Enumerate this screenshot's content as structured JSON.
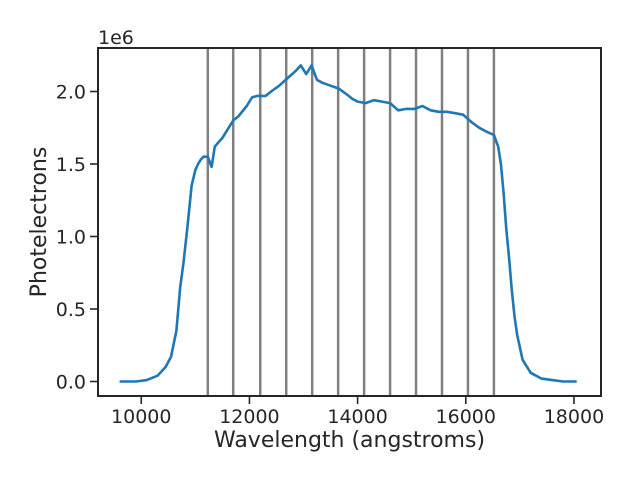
{
  "chart_data": {
    "type": "line",
    "title": "",
    "xlabel": "Wavelength (angstroms)",
    "ylabel": "Photelectrons",
    "y_offset_text": "1e6",
    "xlim": [
      9200,
      18500
    ],
    "ylim": [
      -0.1,
      2.3
    ],
    "x_ticks": [
      10000,
      12000,
      14000,
      16000,
      18000
    ],
    "x_tick_labels": [
      "10000",
      "12000",
      "14000",
      "16000",
      "18000"
    ],
    "y_ticks": [
      0.0,
      0.5,
      1.0,
      1.5,
      2.0
    ],
    "y_tick_labels": [
      "0.0",
      "0.5",
      "1.0",
      "1.5",
      "2.0"
    ],
    "grid": false,
    "line_color": "#1f77b4",
    "vline_color": "#808080",
    "vlines": [
      11230,
      11700,
      12200,
      12680,
      13160,
      13640,
      14120,
      14600,
      15080,
      15560,
      16040,
      16520
    ],
    "series": [
      {
        "x": [
          9600,
          9900,
          10100,
          10300,
          10450,
          10550,
          10650,
          10720,
          10780,
          10850,
          10930,
          11000,
          11050,
          11100,
          11150,
          11230,
          11300,
          11360,
          11430,
          11500,
          11600,
          11700,
          11800,
          11950,
          12050,
          12150,
          12300,
          12400,
          12550,
          12700,
          12850,
          12950,
          13050,
          13150,
          13250,
          13350,
          13500,
          13650,
          13800,
          13900,
          14000,
          14150,
          14300,
          14450,
          14600,
          14750,
          14900,
          15050,
          15200,
          15350,
          15500,
          15650,
          15800,
          15950,
          16100,
          16250,
          16400,
          16520,
          16600,
          16650,
          16700,
          16750,
          16800,
          16850,
          16900,
          16950,
          17050,
          17200,
          17400,
          17600,
          17800,
          18050
        ],
        "y": [
          0.0,
          0.0,
          0.01,
          0.04,
          0.1,
          0.17,
          0.35,
          0.65,
          0.82,
          1.05,
          1.35,
          1.46,
          1.5,
          1.53,
          1.55,
          1.55,
          1.48,
          1.62,
          1.65,
          1.68,
          1.74,
          1.8,
          1.83,
          1.9,
          1.96,
          1.97,
          1.97,
          2.0,
          2.04,
          2.09,
          2.14,
          2.18,
          2.12,
          2.18,
          2.08,
          2.06,
          2.04,
          2.02,
          1.98,
          1.95,
          1.93,
          1.92,
          1.94,
          1.93,
          1.92,
          1.87,
          1.88,
          1.88,
          1.9,
          1.87,
          1.86,
          1.86,
          1.85,
          1.84,
          1.79,
          1.75,
          1.72,
          1.7,
          1.62,
          1.5,
          1.3,
          1.05,
          0.85,
          0.63,
          0.45,
          0.32,
          0.15,
          0.06,
          0.02,
          0.01,
          0.0,
          0.0
        ]
      }
    ]
  }
}
